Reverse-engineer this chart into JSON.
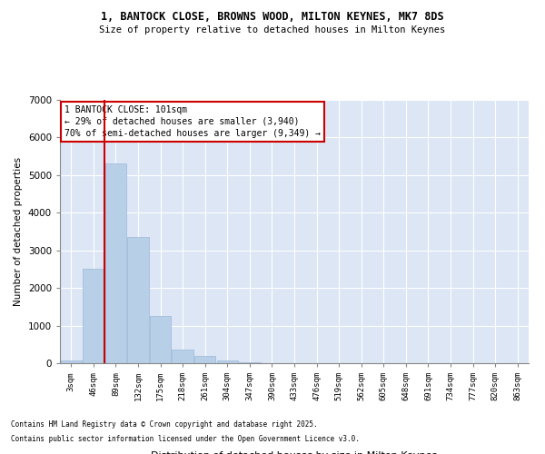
{
  "title": "1, BANTOCK CLOSE, BROWNS WOOD, MILTON KEYNES, MK7 8DS",
  "subtitle": "Size of property relative to detached houses in Milton Keynes",
  "xlabel": "Distribution of detached houses by size in Milton Keynes",
  "ylabel": "Number of detached properties",
  "background_color": "#dce6f5",
  "bar_color": "#b8cfe8",
  "bar_edge_color": "#9ab8d8",
  "categories": [
    "3sqm",
    "46sqm",
    "89sqm",
    "132sqm",
    "175sqm",
    "218sqm",
    "261sqm",
    "304sqm",
    "347sqm",
    "390sqm",
    "433sqm",
    "476sqm",
    "519sqm",
    "562sqm",
    "605sqm",
    "648sqm",
    "691sqm",
    "734sqm",
    "777sqm",
    "820sqm",
    "863sqm"
  ],
  "values": [
    70,
    2500,
    5300,
    3350,
    1250,
    370,
    195,
    80,
    20,
    5,
    2,
    1,
    0,
    0,
    0,
    0,
    0,
    0,
    0,
    0,
    0
  ],
  "ylim": [
    0,
    7000
  ],
  "yticks": [
    0,
    1000,
    2000,
    3000,
    4000,
    5000,
    6000,
    7000
  ],
  "vline_x": 1.5,
  "vline_color": "#cc0000",
  "annotation_text_line1": "1 BANTOCK CLOSE: 101sqm",
  "annotation_text_line2": "← 29% of detached houses are smaller (3,940)",
  "annotation_text_line3": "70% of semi-detached houses are larger (9,349) →",
  "annotation_box_color": "#ffffff",
  "annotation_box_edge": "#cc0000",
  "footer_line1": "Contains HM Land Registry data © Crown copyright and database right 2025.",
  "footer_line2": "Contains public sector information licensed under the Open Government Licence v3.0."
}
